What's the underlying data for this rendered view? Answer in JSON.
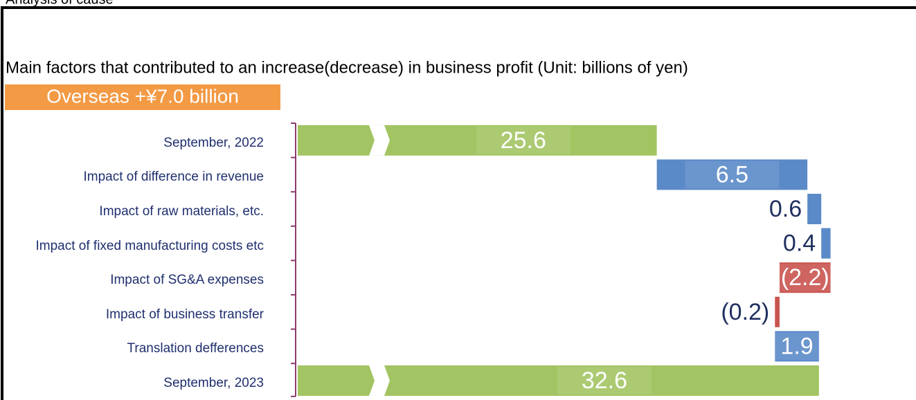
{
  "heading": "Analysis of cause",
  "chart_data": {
    "type": "waterfall",
    "title": "Main factors that contributed to an increase(decrease) in business profit  (Unit: billions of yen)",
    "subtitle": "Overseas +¥7.0 billion",
    "categories": [
      "September, 2022",
      "Impact of difference in revenue",
      "Impact of raw materials, etc.",
      "Impact of fixed manufacturing costs etc",
      "Impact of SG&A expenses",
      "Impact of business transfer",
      "Translation defferences",
      "September, 2023"
    ],
    "values": [
      25.6,
      6.5,
      0.6,
      0.4,
      -2.2,
      -0.2,
      1.9,
      32.6
    ],
    "value_labels": [
      "25.6",
      "6.5",
      "0.6",
      "0.4",
      "(2.2)",
      "(0.2)",
      "1.9",
      "32.6"
    ],
    "colors": {
      "total": "#a3c462",
      "increase": "#5b8ac8",
      "decrease": "#c9544f"
    },
    "xlim": [
      10.1,
      36.4
    ],
    "axis_break": true
  }
}
